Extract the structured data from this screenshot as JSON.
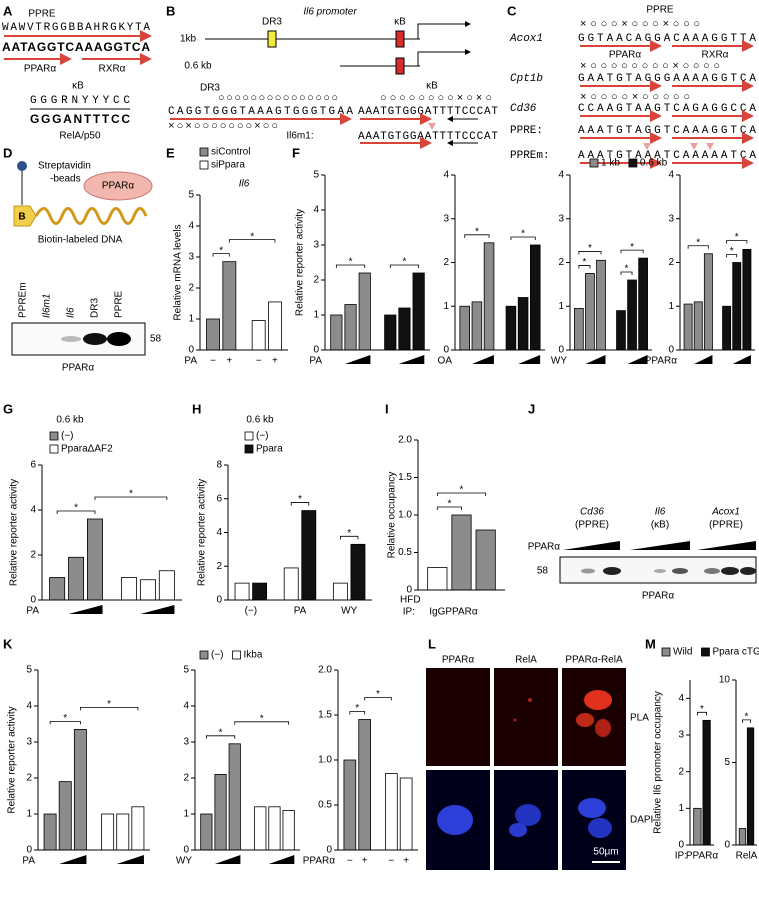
{
  "panel_labels": [
    "A",
    "B",
    "C",
    "D",
    "E",
    "F",
    "G",
    "H",
    "I",
    "J",
    "K",
    "L",
    "M"
  ],
  "panel_a": {
    "ppre_title": "PPRE",
    "ppre_consensus": "WAWVTRGGBBAHRGKYTA",
    "ppre_logo": "AATAGGTCAAAGGTCA",
    "ppre_left": "PPARα",
    "ppre_right": "RXRα",
    "kb_title": "κB",
    "kb_consensus": "GGGRNYYYCC",
    "kb_logo": "GGGANTTTCC",
    "kb_caption": "RelA/p50"
  },
  "panel_b": {
    "title": "Il6 promoter",
    "construct_1": "1kb",
    "construct_2": "0.6 kb",
    "site_dr3": "DR3",
    "site_kb": "κB",
    "dr3_label": "DR3",
    "dr3_marks_top": "○○○○○○○○○○○○○○○",
    "dr3_seq": "CAGGTGGGTAAAGTGGGTGAA",
    "dr3_marks_bottom": "×○×○○○○○○○×○○",
    "kb_label": "κB",
    "kb_marks": "○○○○○○○○×○×○",
    "kb_seq": "AAATGTGGGATTTTCCCAT",
    "mut_label": "Il6m1:",
    "mut_seq": "AAATGTGGAATTTTCCCAT"
  },
  "panel_c": {
    "title": "PPRE",
    "left": "PPARα",
    "right": "RXRα",
    "rows": [
      {
        "gene": "Acox1",
        "seq": "GGTAACAGGACAAAGGTTA",
        "marks": "×○○○×○○○×○○○"
      },
      {
        "gene": "Cpt1b",
        "seq": "GAATGTAGGGAAAAGGTCA",
        "marks": "×○○○○○○○○×○○○○"
      },
      {
        "gene": "Cd36",
        "seq": "CCAAGTAAGTCAGAGGCCA",
        "marks": "×○○○○×○○○○○"
      },
      {
        "gene": "PPRE:",
        "seq": "AAATGTAGGTCAAAGGTCA"
      },
      {
        "gene": "PPREm:",
        "seq": "AAATGTAAATCAAAAATCA"
      }
    ]
  },
  "panel_d": {
    "beads_1": "Streptavidin",
    "beads_2": "-beads",
    "protein": "PPARα",
    "biotin": "B",
    "dna": "Biotin-labeled DNA",
    "lanes": [
      "PPREm",
      "Il6m1",
      "Il6",
      "DR3",
      "PPRE"
    ],
    "mw": "58",
    "blot": "PPARα"
  },
  "panel_j": {
    "groups": [
      {
        "gene": "Cd36",
        "site": "(PPRE)"
      },
      {
        "gene": "Il6",
        "site": "(κB)"
      },
      {
        "gene": "Acox1",
        "site": "(PPRE)"
      }
    ],
    "ligand": "PPARα",
    "mw": "58",
    "blot": "PPARα"
  },
  "panel_l": {
    "columns": [
      "PPARα",
      "RelA",
      "PPARα-RelA"
    ],
    "rows": [
      "PLA",
      "DAPI"
    ],
    "scale": "50μm"
  },
  "chart_data": [
    {
      "type": "bar",
      "title": "Il6",
      "y_label": "Relative mRNA levels",
      "x_label": "PA",
      "categories": [
        "−",
        "+"
      ],
      "group_by": "series",
      "series": [
        {
          "name": "siControl",
          "color": "#8c8c8c",
          "values": [
            1.0,
            2.85
          ]
        },
        {
          "name": "siPpara",
          "color": "#ffffff",
          "values": [
            0.95,
            1.55
          ]
        }
      ],
      "ylim": [
        0,
        5
      ],
      "yticks": [
        0,
        1,
        2,
        3,
        4,
        5
      ],
      "brackets": [
        {
          "label": "*",
          "bars": [
            0,
            1
          ]
        },
        {
          "label": "*",
          "bars": [
            1,
            3
          ]
        }
      ]
    },
    {
      "type": "bar",
      "y_label": "Relative reporter activity",
      "x_label": "PA",
      "group_by": "series",
      "ramp": true,
      "series": [
        {
          "name": "1 kb",
          "color": "#8c8c8c",
          "values": [
            1.0,
            1.3,
            2.2
          ]
        },
        {
          "name": "0.6 kb",
          "color": "#111111",
          "values": [
            1.0,
            1.2,
            2.2
          ]
        }
      ],
      "ylim": [
        0,
        5
      ],
      "yticks": [
        0,
        1,
        2,
        3,
        4,
        5
      ],
      "brackets": [
        {
          "label": "*",
          "bars": [
            0,
            2
          ]
        },
        {
          "label": "*",
          "bars": [
            3,
            5
          ]
        }
      ]
    },
    {
      "type": "bar",
      "x_label": "OA",
      "group_by": "series",
      "ramp": true,
      "series": [
        {
          "color": "#8c8c8c",
          "values": [
            1.0,
            1.1,
            2.45
          ]
        },
        {
          "color": "#111111",
          "values": [
            1.0,
            1.2,
            2.4
          ]
        }
      ],
      "ylim": [
        0,
        4
      ],
      "yticks": [
        0,
        1,
        2,
        3,
        4
      ],
      "brackets": [
        {
          "label": "*",
          "bars": [
            0,
            2
          ]
        },
        {
          "label": "*",
          "bars": [
            3,
            5
          ]
        }
      ]
    },
    {
      "type": "bar",
      "x_label": "WY",
      "group_by": "series",
      "ramp": true,
      "series": [
        {
          "color": "#8c8c8c",
          "values": [
            0.95,
            1.75,
            2.05
          ]
        },
        {
          "color": "#111111",
          "values": [
            0.9,
            1.6,
            2.1
          ]
        }
      ],
      "ylim": [
        0,
        4
      ],
      "yticks": [
        0,
        1,
        2,
        3,
        4
      ],
      "brackets": [
        {
          "label": "*",
          "bars": [
            0,
            1
          ]
        },
        {
          "label": "*",
          "bars": [
            0,
            2
          ]
        },
        {
          "label": "*",
          "bars": [
            3,
            4
          ]
        },
        {
          "label": "*",
          "bars": [
            3,
            5
          ]
        }
      ]
    },
    {
      "type": "bar",
      "x_label": "PPARα",
      "group_by": "series",
      "ramp": true,
      "series": [
        {
          "color": "#8c8c8c",
          "values": [
            1.05,
            1.1,
            2.2
          ]
        },
        {
          "color": "#111111",
          "values": [
            1.0,
            2.0,
            2.3
          ]
        }
      ],
      "ylim": [
        0,
        4
      ],
      "yticks": [
        0,
        1,
        2,
        3,
        4
      ],
      "brackets": [
        {
          "label": "*",
          "bars": [
            0,
            2
          ]
        },
        {
          "label": "*",
          "bars": [
            3,
            4
          ]
        },
        {
          "label": "*",
          "bars": [
            3,
            5
          ]
        }
      ]
    },
    {
      "type": "bar",
      "title": "0.6 kb",
      "y_label": "Relative reporter activity",
      "x_label": "PA",
      "group_by": "series",
      "ramp": true,
      "series": [
        {
          "name": "(−)",
          "color": "#8c8c8c",
          "values": [
            1.0,
            1.9,
            3.6
          ]
        },
        {
          "name": "PparaΔAF2",
          "color": "#ffffff",
          "values": [
            1.0,
            0.9,
            1.3
          ]
        }
      ],
      "ylim": [
        0,
        6
      ],
      "yticks": [
        0,
        2,
        4,
        6
      ],
      "brackets": [
        {
          "label": "*",
          "bars": [
            0,
            2
          ]
        },
        {
          "label": "*",
          "bars": [
            2,
            5
          ]
        }
      ]
    },
    {
      "type": "bar",
      "title": "0.6 kb",
      "y_label": "Relative reporter activity",
      "categories": [
        "(−)",
        "PA",
        "WY"
      ],
      "group_by": "category",
      "series": [
        {
          "name": "(−)",
          "color": "#ffffff",
          "values": [
            1.0,
            1.9,
            1.0
          ]
        },
        {
          "name": "Ppara",
          "color": "#111111",
          "values": [
            1.0,
            5.3,
            3.3
          ]
        }
      ],
      "ylim": [
        0,
        8
      ],
      "yticks": [
        0,
        2,
        4,
        6,
        8
      ],
      "brackets": [
        {
          "label": "*",
          "bars": [
            2,
            3
          ]
        },
        {
          "label": "*",
          "bars": [
            4,
            5
          ]
        }
      ]
    },
    {
      "type": "bar",
      "y_label": "Relative occupancy",
      "x_label": "IP:",
      "note": "HFD",
      "categories": [
        "IgG",
        "PPARα",
        null
      ],
      "group_by": "series",
      "series": [
        {
          "colors": [
            "#ffffff",
            "#8c8c8c",
            "#8c8c8c"
          ],
          "values": [
            0.3,
            1.0,
            0.8
          ]
        }
      ],
      "ylim": [
        0,
        2
      ],
      "yticks": [
        0,
        0.5,
        {
          "value": 1,
          "label": "1.0"
        },
        1.5,
        {
          "value": 2,
          "label": "2.0"
        }
      ],
      "brackets": [
        {
          "label": "*",
          "bars": [
            0,
            1
          ]
        },
        {
          "label": "*",
          "bars": [
            0,
            2
          ]
        }
      ]
    },
    {
      "type": "bar",
      "y_label": "Relative reporter activity",
      "x_label": "PA",
      "group_by": "series",
      "ramp": true,
      "series": [
        {
          "color": "#8c8c8c",
          "values": [
            1.0,
            1.9,
            3.35
          ]
        },
        {
          "color": "#ffffff",
          "values": [
            1.0,
            1.0,
            1.2
          ]
        }
      ],
      "ylim": [
        0,
        5
      ],
      "yticks": [
        0,
        1,
        2,
        3,
        4,
        5
      ],
      "brackets": [
        {
          "label": "*",
          "bars": [
            0,
            2
          ]
        },
        {
          "label": "*",
          "bars": [
            2,
            5
          ]
        }
      ]
    },
    {
      "type": "bar",
      "x_label": "WY",
      "group_by": "series",
      "ramp": true,
      "series": [
        {
          "name": "(−)",
          "color": "#8c8c8c",
          "values": [
            1.0,
            2.1,
            2.95
          ]
        },
        {
          "name": "Ikba",
          "color": "#ffffff",
          "values": [
            1.2,
            1.2,
            1.1
          ]
        }
      ],
      "ylim": [
        0,
        5
      ],
      "yticks": [
        0,
        1,
        2,
        3,
        4,
        5
      ],
      "brackets": [
        {
          "label": "*",
          "bars": [
            0,
            2
          ]
        },
        {
          "label": "*",
          "bars": [
            2,
            5
          ]
        }
      ]
    },
    {
      "type": "bar",
      "x_label": "PPARα",
      "categories": [
        "−",
        "+"
      ],
      "group_by": "series",
      "series": [
        {
          "color": "#8c8c8c",
          "values": [
            1.0,
            1.45
          ]
        },
        {
          "color": "#ffffff",
          "values": [
            0.85,
            0.8
          ]
        }
      ],
      "ylim": [
        0,
        2
      ],
      "yticks": [
        0,
        0.5,
        {
          "value": 1,
          "label": "1.0"
        },
        1.5,
        {
          "value": 2,
          "label": "2.0"
        }
      ],
      "brackets": [
        {
          "label": "*",
          "bars": [
            0,
            1
          ]
        },
        {
          "label": "*",
          "bars": [
            1,
            2
          ]
        }
      ]
    },
    {
      "type": "bar",
      "y_label": "Relative Il6 promoter occupancy",
      "x_label": "IP:",
      "categories": [
        "PPARα"
      ],
      "group_by": "category",
      "series": [
        {
          "name": "Wild",
          "color": "#8c8c8c",
          "values": [
            1.0
          ]
        },
        {
          "name": "Ppara cTG",
          "color": "#111111",
          "values": [
            3.4
          ]
        }
      ],
      "ylim": [
        0,
        4.5
      ],
      "yticks": [
        0,
        1,
        2,
        3,
        4
      ],
      "brackets": [
        {
          "label": "*",
          "bars": [
            0,
            1
          ]
        }
      ]
    },
    {
      "type": "bar",
      "categories": [
        "RelA"
      ],
      "group_by": "category",
      "series": [
        {
          "color": "#8c8c8c",
          "values": [
            1.0
          ]
        },
        {
          "color": "#111111",
          "values": [
            7.1
          ]
        }
      ],
      "ylim": [
        0,
        10
      ],
      "yticks": [
        0,
        5,
        10
      ],
      "brackets": [
        {
          "label": "*",
          "bars": [
            0,
            1
          ]
        }
      ]
    }
  ]
}
